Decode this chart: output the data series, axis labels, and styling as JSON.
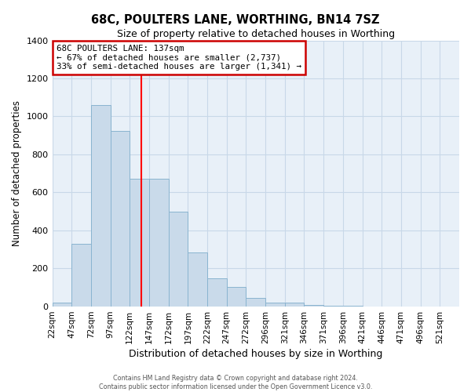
{
  "title": "68C, POULTERS LANE, WORTHING, BN14 7SZ",
  "subtitle": "Size of property relative to detached houses in Worthing",
  "xlabel": "Distribution of detached houses by size in Worthing",
  "ylabel": "Number of detached properties",
  "footnote1": "Contains HM Land Registry data © Crown copyright and database right 2024.",
  "footnote2": "Contains public sector information licensed under the Open Government Licence v3.0.",
  "bin_labels": [
    "22sqm",
    "47sqm",
    "72sqm",
    "97sqm",
    "122sqm",
    "147sqm",
    "172sqm",
    "197sqm",
    "222sqm",
    "247sqm",
    "272sqm",
    "296sqm",
    "321sqm",
    "346sqm",
    "371sqm",
    "396sqm",
    "421sqm",
    "446sqm",
    "471sqm",
    "496sqm",
    "521sqm"
  ],
  "bar_values": [
    18,
    330,
    1060,
    925,
    670,
    670,
    500,
    285,
    148,
    103,
    42,
    20,
    20,
    8,
    1,
    1,
    0,
    0,
    0,
    0,
    0
  ],
  "bar_color": "#c9daea",
  "bar_edge_color": "#8ab4d0",
  "vline_x": 4.6,
  "vline_color": "red",
  "ylim": [
    0,
    1400
  ],
  "yticks": [
    0,
    200,
    400,
    600,
    800,
    1000,
    1200,
    1400
  ],
  "annotation_title": "68C POULTERS LANE: 137sqm",
  "annotation_line1": "← 67% of detached houses are smaller (2,737)",
  "annotation_line2": "33% of semi-detached houses are larger (1,341) →",
  "annotation_box_facecolor": "#ffffff",
  "annotation_box_edgecolor": "#cc0000",
  "grid_color": "#c8d8e8",
  "bg_color": "#e8f0f8",
  "fig_width": 6.0,
  "fig_height": 5.0,
  "fig_dpi": 100
}
